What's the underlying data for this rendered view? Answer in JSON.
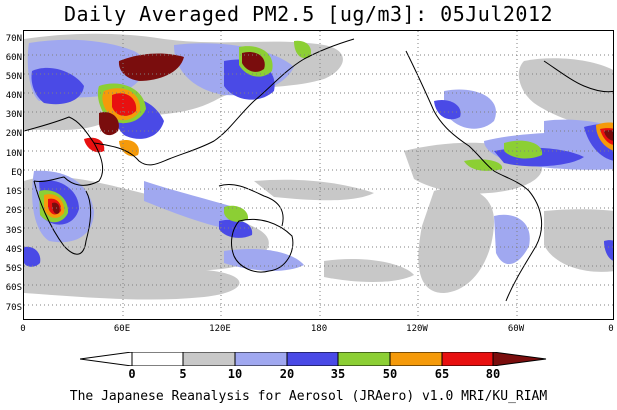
{
  "title": "Daily Averaged PM2.5 [ug/m3]: 05Jul2012",
  "footer": "The Japanese Reanalysis for Aerosol (JRAero) v1.0 MRI/KU_RIAM",
  "map": {
    "lat_labels": [
      "70N",
      "60N",
      "50N",
      "40N",
      "30N",
      "20N",
      "10N",
      "EQ",
      "10S",
      "20S",
      "30S",
      "40S",
      "50S",
      "60S",
      "70S"
    ],
    "lon_labels": [
      "0",
      "60E",
      "120E",
      "180",
      "120W",
      "60W",
      "0"
    ],
    "grid": "dotted",
    "projection": "cylindrical equidistant, 0E to 360E, 74S to 74N"
  },
  "legend": {
    "ticks": [
      "0",
      "5",
      "10",
      "20",
      "35",
      "50",
      "65",
      "80"
    ],
    "colors": [
      "#ffffff",
      "#c8c8c8",
      "#a0a8f0",
      "#4a4ae6",
      "#8ccf34",
      "#f59a0a",
      "#e81010",
      "#7a0d0d"
    ],
    "units": "ug/m3"
  }
}
